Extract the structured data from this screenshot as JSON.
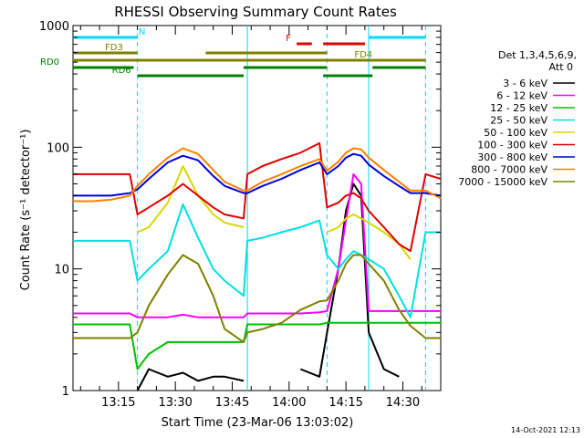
{
  "chart_data": {
    "type": "line",
    "title": "RHESSI Observing Summary Count Rates",
    "xlabel": "Start Time (23-Mar-06 13:03:02)",
    "ylabel": "Count Rate (s⁻¹ detector⁻¹)",
    "yscale": "log",
    "ylim": [
      1,
      1000
    ],
    "xlim_minutes_after_start": [
      0,
      97
    ],
    "x_tick_labels": [
      "13:15",
      "13:30",
      "13:45",
      "14:00",
      "14:15",
      "14:30"
    ],
    "x_tick_minutes_after_start": [
      12,
      27,
      42,
      57,
      72,
      87
    ],
    "y_tick_labels": [
      "1",
      "10",
      "100",
      "1000"
    ],
    "y_tick_values": [
      1,
      10,
      100,
      1000
    ],
    "legend_header": [
      "Det 1,3,4,5,6,9,",
      "Att 0"
    ],
    "legend_position": "right",
    "footer_timestamp": "14-Oct-2021 12:13",
    "x_unit_note": "x values are minutes after 13:03:02",
    "vertical_markers": [
      {
        "x": 17,
        "color": "#00d8ff",
        "style": "dashed"
      },
      {
        "x": 46,
        "color": "#00d8ff",
        "style": "solid"
      },
      {
        "x": 67,
        "color": "#00d8ff",
        "style": "dashed"
      },
      {
        "x": 78,
        "color": "#00d8ff",
        "style": "solid"
      },
      {
        "x": 93,
        "color": "#00d8ff",
        "style": "dashed"
      }
    ],
    "flag_bars": [
      {
        "label": "N",
        "color": "#00d8ff",
        "segments": [
          [
            0,
            17
          ],
          [
            78,
            93
          ]
        ],
        "level": 1
      },
      {
        "label": "F",
        "color": "#e00000",
        "segments": [
          [
            59,
            63
          ],
          [
            66,
            77
          ]
        ],
        "level": 2
      },
      {
        "label": "FD3",
        "color": "#808000",
        "segments": [
          [
            0,
            17
          ],
          [
            35,
            67
          ]
        ],
        "level": 3
      },
      {
        "label": "FD4",
        "color": "#808000",
        "segments": [
          [
            0,
            93
          ],
          [
            67,
            93
          ]
        ],
        "level": 4
      },
      {
        "label": "RD0",
        "color": "#008000",
        "segments": [
          [
            0,
            16
          ],
          [
            45,
            67
          ],
          [
            79,
            93
          ]
        ],
        "level": 5
      },
      {
        "label": "RD6",
        "color": "#008000",
        "segments": [
          [
            17,
            45
          ],
          [
            66,
            79
          ]
        ],
        "level": 6
      }
    ],
    "x": [
      0,
      5,
      10,
      15,
      17,
      20,
      25,
      29,
      33,
      37,
      40,
      45,
      46,
      50,
      55,
      60,
      65,
      67,
      70,
      72,
      74,
      76,
      78,
      82,
      86,
      89,
      93,
      97
    ],
    "series": [
      {
        "name": "3 - 6 keV",
        "color": "#000000",
        "values": [
          null,
          null,
          null,
          null,
          1,
          1.5,
          1.3,
          1.4,
          1.2,
          1.3,
          1.3,
          1.2,
          null,
          null,
          null,
          1.5,
          1.3,
          3,
          10,
          30,
          50,
          40,
          3,
          1.5,
          1.3,
          null,
          null,
          null
        ]
      },
      {
        "name": "6 - 12 keV",
        "color": "#ff00ff",
        "values": [
          4.3,
          4.3,
          4.3,
          4.3,
          4,
          4,
          4,
          4.2,
          4,
          4,
          4,
          4,
          4.3,
          4.3,
          4.3,
          4.3,
          4.4,
          4.5,
          10,
          25,
          60,
          50,
          4.5,
          4.5,
          4.5,
          4.5,
          4.5,
          4.5
        ]
      },
      {
        "name": "12 - 25 keV",
        "color": "#00c000",
        "values": [
          3.5,
          3.5,
          3.5,
          3.5,
          1.5,
          2,
          2.5,
          2.5,
          2.5,
          2.5,
          2.5,
          2.5,
          3.5,
          3.5,
          3.5,
          3.5,
          3.5,
          3.6,
          3.6,
          3.6,
          3.6,
          3.6,
          3.6,
          3.6,
          3.6,
          3.6,
          3.6,
          3.6
        ]
      },
      {
        "name": "25 - 50 keV",
        "color": "#00e0e0",
        "values": [
          17,
          17,
          17,
          17,
          8,
          10,
          14,
          34,
          18,
          10,
          8,
          6,
          17,
          18,
          20,
          22,
          25,
          13,
          10,
          12,
          14,
          13,
          12,
          10,
          6,
          4,
          20,
          20
        ]
      },
      {
        "name": "50 - 100 keV",
        "color": "#d8d800",
        "values": [
          null,
          null,
          null,
          null,
          20,
          22,
          35,
          70,
          40,
          28,
          24,
          22,
          null,
          null,
          null,
          null,
          null,
          20,
          22,
          26,
          28,
          26,
          24,
          20,
          16,
          12,
          null,
          null
        ]
      },
      {
        "name": "100 - 300 keV",
        "color": "#e00000",
        "values": [
          60,
          60,
          60,
          60,
          28,
          32,
          40,
          50,
          40,
          32,
          28,
          26,
          60,
          70,
          80,
          90,
          108,
          32,
          35,
          40,
          42,
          38,
          30,
          22,
          16,
          14,
          60,
          55
        ]
      },
      {
        "name": "300 - 800 keV",
        "color": "#0000e0",
        "values": [
          40,
          40,
          40,
          42,
          45,
          55,
          75,
          85,
          78,
          58,
          48,
          42,
          42,
          48,
          55,
          65,
          75,
          60,
          70,
          82,
          88,
          85,
          72,
          58,
          48,
          42,
          42,
          40
        ]
      },
      {
        "name": "800 - 7000 keV",
        "color": "#ff8000",
        "values": [
          36,
          36,
          37,
          40,
          48,
          60,
          82,
          98,
          88,
          65,
          52,
          44,
          44,
          52,
          60,
          70,
          80,
          64,
          76,
          90,
          98,
          96,
          82,
          65,
          52,
          44,
          44,
          38
        ]
      },
      {
        "name": "7000 - 15000 keV",
        "color": "#808000",
        "values": [
          2.7,
          2.7,
          2.7,
          2.7,
          3,
          5,
          9,
          13,
          11,
          6,
          3.2,
          2.5,
          3,
          3.2,
          3.6,
          4.6,
          5.4,
          5.5,
          8,
          11,
          13,
          13,
          11,
          8,
          4.6,
          3.4,
          2.7,
          2.7
        ]
      }
    ]
  }
}
